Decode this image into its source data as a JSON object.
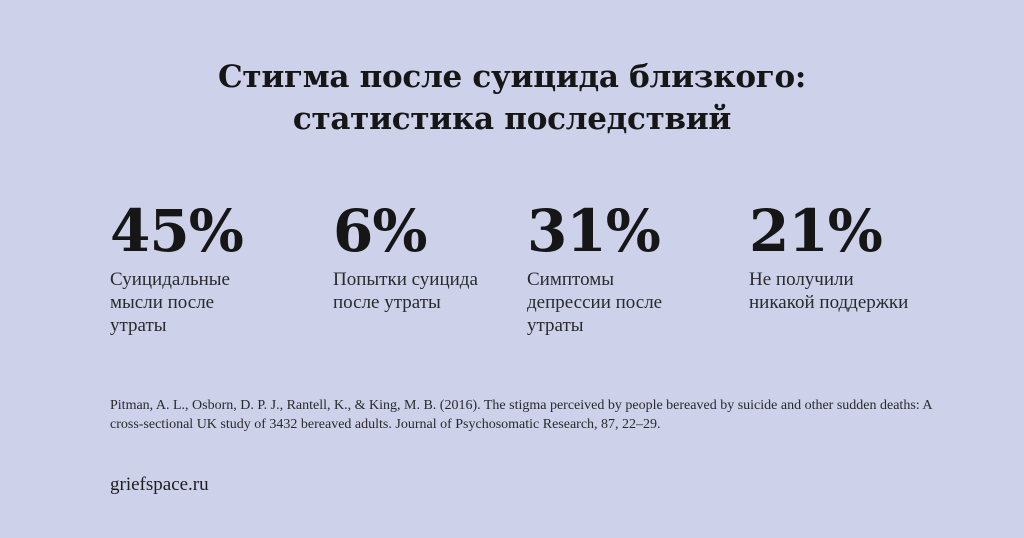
{
  "title": {
    "line1": "Стигма после суицида близкого:",
    "line2": "статистика последствий"
  },
  "stats": [
    {
      "value": "45%",
      "label": "Суицидальные мысли после утраты"
    },
    {
      "value": "6%",
      "label": "Попытки суицида после утраты"
    },
    {
      "value": "31%",
      "label": "Симптомы депрессии после утраты"
    },
    {
      "value": "21%",
      "label": "Не получили никакой поддержки"
    }
  ],
  "source": "Pitman, A. L., Osborn, D. P. J., Rantell, K., & King, M. B. (2016). The stigma perceived by people bereaved by suicide and other sudden deaths: A cross-sectional UK study of 3432 bereaved adults. Journal of Psychosomatic Research, 87, 22–29.",
  "site": "griefspace.ru",
  "colors": {
    "background": "#cdd1ea",
    "text": "#161616"
  }
}
